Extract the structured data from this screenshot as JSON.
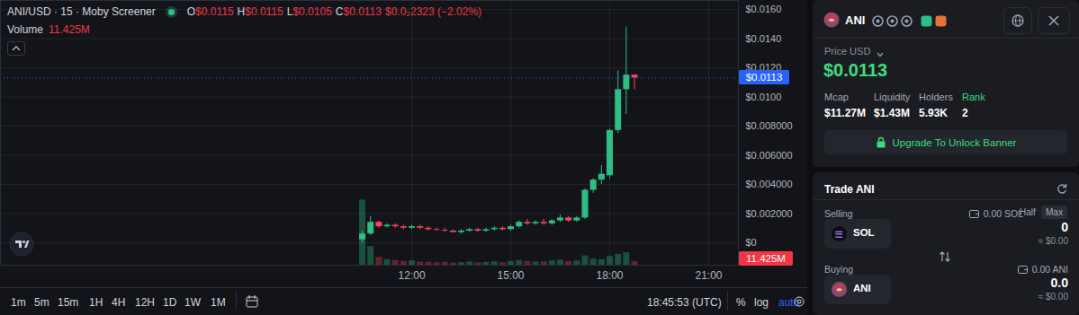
{
  "header": {
    "title": "ANI/USD · 15 · Moby Screener",
    "ohlc": [
      {
        "label": "O",
        "value": "$0.0115"
      },
      {
        "label": "H",
        "value": "$0.0115"
      },
      {
        "label": "L",
        "value": "$0.0105"
      },
      {
        "label": "C",
        "value": "$0.0113"
      }
    ],
    "change": "$0.0₂2323 (−2.02%)",
    "volume_label": "Volume",
    "volume_value": "11.425M"
  },
  "chart_data": {
    "type": "candlestick",
    "x": [
      630,
      645,
      660,
      675,
      690,
      705,
      720,
      735,
      750,
      765,
      780,
      795,
      810,
      825,
      840,
      855,
      870,
      885,
      900,
      915,
      930,
      945,
      960,
      975,
      990,
      1005,
      1020,
      1035,
      1050,
      1065,
      1080,
      1095,
      1110,
      1125
    ],
    "open": [
      0.0002,
      0.0006,
      0.0014,
      0.0011,
      0.0012,
      0.0011,
      0.001,
      0.0011,
      0.001,
      0.0009,
      0.00085,
      0.0008,
      0.0007,
      0.0008,
      0.0009,
      0.0008,
      0.0009,
      0.001,
      0.0009,
      0.0011,
      0.0014,
      0.0013,
      0.0014,
      0.0013,
      0.0015,
      0.0017,
      0.0015,
      0.0017,
      0.0036,
      0.0043,
      0.0046,
      0.0077,
      0.0105,
      0.0115
    ],
    "high": [
      0.0008,
      0.0018,
      0.0015,
      0.0013,
      0.0013,
      0.0012,
      0.0012,
      0.0012,
      0.0011,
      0.001,
      0.001,
      0.0009,
      0.0009,
      0.001,
      0.001,
      0.001,
      0.0011,
      0.0011,
      0.0012,
      0.0015,
      0.0016,
      0.0015,
      0.0016,
      0.0016,
      0.0019,
      0.0018,
      0.0018,
      0.0037,
      0.0044,
      0.0053,
      0.0078,
      0.0118,
      0.0148,
      0.0115
    ],
    "low": [
      0.0,
      0.0005,
      0.001,
      0.001,
      0.001,
      0.0009,
      0.0009,
      0.0009,
      0.0008,
      0.0008,
      0.0007,
      0.0007,
      0.0006,
      0.0007,
      0.0007,
      0.0007,
      0.0008,
      0.0008,
      0.0008,
      0.001,
      0.0012,
      0.0012,
      0.0012,
      0.0012,
      0.0014,
      0.0014,
      0.0014,
      0.0016,
      0.0034,
      0.004,
      0.0044,
      0.0075,
      0.0088,
      0.0105
    ],
    "close": [
      0.0006,
      0.0014,
      0.0011,
      0.0012,
      0.0011,
      0.001,
      0.0011,
      0.001,
      0.0009,
      0.00085,
      0.0008,
      0.0007,
      0.0008,
      0.0009,
      0.0008,
      0.0009,
      0.001,
      0.0009,
      0.0011,
      0.0014,
      0.0013,
      0.0014,
      0.0013,
      0.0015,
      0.0017,
      0.0015,
      0.0017,
      0.0036,
      0.0043,
      0.0047,
      0.0077,
      0.0105,
      0.0115,
      0.0113
    ],
    "colors": [
      "#2ebd85",
      "#2ebd85",
      "#f6465d",
      "#2ebd85",
      "#f6465d",
      "#f6465d",
      "#2ebd85",
      "#f6465d",
      "#f6465d",
      "#f6465d",
      "#f6465d",
      "#f6465d",
      "#2ebd85",
      "#2ebd85",
      "#f6465d",
      "#2ebd85",
      "#2ebd85",
      "#f6465d",
      "#2ebd85",
      "#2ebd85",
      "#f6465d",
      "#2ebd85",
      "#f6465d",
      "#2ebd85",
      "#2ebd85",
      "#f6465d",
      "#2ebd85",
      "#2ebd85",
      "#2ebd85",
      "#2ebd85",
      "#2ebd85",
      "#2ebd85",
      "#2ebd85",
      "#f6465d"
    ],
    "volume": {
      "values": [
        210,
        60,
        25,
        18,
        15,
        12,
        14,
        10,
        9,
        8,
        9,
        7,
        8,
        10,
        8,
        9,
        11,
        8,
        12,
        15,
        12,
        10,
        11,
        14,
        16,
        12,
        14,
        30,
        20,
        18,
        28,
        35,
        40,
        11.425
      ],
      "ylim": [
        0,
        240
      ]
    },
    "xlim": [
      -28,
      1314
    ],
    "xticks": [
      {
        "value": 720,
        "label": "12:00"
      },
      {
        "value": 900,
        "label": "15:00"
      },
      {
        "value": 1080,
        "label": "18:00"
      },
      {
        "value": 1260,
        "label": "21:00"
      }
    ],
    "ylim": [
      -0.00154,
      0.01662
    ],
    "yticks": [
      {
        "value": 0,
        "label": "$0"
      },
      {
        "value": 0.002,
        "label": "$0.002000"
      },
      {
        "value": 0.004,
        "label": "$0.004000"
      },
      {
        "value": 0.006,
        "label": "$0.006000"
      },
      {
        "value": 0.008,
        "label": "$0.008000"
      },
      {
        "value": 0.01,
        "label": "$0.0100"
      },
      {
        "value": 0.012,
        "label": "$0.0120"
      },
      {
        "value": 0.014,
        "label": "$0.0140"
      },
      {
        "value": 0.016,
        "label": "$0.0160"
      }
    ],
    "grid": true
  },
  "price_tag": "$0.0113",
  "toolbar": {
    "timeframes": [
      "1m",
      "5m",
      "15m",
      "1H",
      "4H",
      "12H",
      "1D",
      "1W",
      "1M"
    ],
    "clock": "18:45:53 (UTC)",
    "options": [
      "%",
      "log",
      "auto"
    ]
  },
  "panel": {
    "token": "ANI",
    "price_label": "Price USD",
    "price": "$0.0113",
    "stats": [
      {
        "label": "Mcap",
        "value": "$11.27M"
      },
      {
        "label": "Liquidity",
        "value": "$1.43M"
      },
      {
        "label": "Holders",
        "value": "5.93K"
      },
      {
        "label": "Rank",
        "value": "2"
      }
    ],
    "banner_button": "Upgrade To Unlock Banner",
    "trade": {
      "title": "Trade ANI",
      "selling": {
        "label": "Selling",
        "balance": "0.00 SOL",
        "buttons": [
          "Half",
          "Max"
        ],
        "token": "SOL",
        "amount": "0",
        "usd": "≈ $0.00"
      },
      "buying": {
        "label": "Buying",
        "balance": "0.00 ANI",
        "token": "ANI",
        "amount": "0.0",
        "usd": "≈ $0.00"
      }
    }
  }
}
